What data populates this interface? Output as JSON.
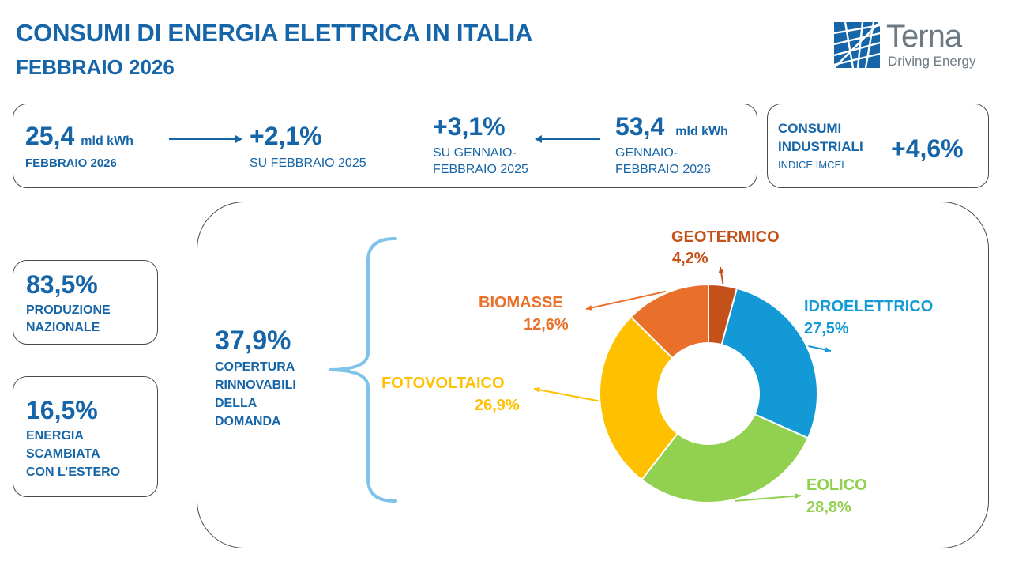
{
  "header": {
    "title": "CONSUMI DI ENERGIA ELETTRICA IN ITALIA",
    "subtitle": "FEBBRAIO 2026"
  },
  "logo": {
    "name": "Terna",
    "tagline": "Driving Energy"
  },
  "kpis": {
    "monthly_value": "25,4",
    "monthly_unit": "mld kWh",
    "monthly_caption": "FEBBRAIO 2026",
    "monthly_change": "+2,1%",
    "monthly_change_caption": "SU FEBBRAIO 2025",
    "ytd_change": "+3,1%",
    "ytd_change_caption_1": "SU GENNAIO-",
    "ytd_change_caption_2": "FEBBRAIO 2025",
    "ytd_value": "53,4",
    "ytd_unit": "mld kWh",
    "ytd_caption_1": "GENNAIO-",
    "ytd_caption_2": "FEBBRAIO 2026"
  },
  "industrial": {
    "label_1": "CONSUMI",
    "label_2": "INDUSTRIALI",
    "sub": "INDICE IMCEI",
    "value": "+4,6%"
  },
  "production": {
    "value": "83,5%",
    "caption_1": "PRODUZIONE",
    "caption_2": "NAZIONALE"
  },
  "exchange": {
    "value": "16,5%",
    "caption_1": "ENERGIA",
    "caption_2": "SCAMBIATA",
    "caption_3": "CON L’ESTERO"
  },
  "coverage": {
    "value": "37,9%",
    "caption_1": "COPERTURA",
    "caption_2": "RINNOVABILI",
    "caption_3": "DELLA",
    "caption_4": "DOMANDA"
  },
  "chart_data": {
    "type": "pie",
    "donut": true,
    "categories": [
      "GEOTERMICO",
      "IDROELETTRICO",
      "EOLICO",
      "FOTOVOLTAICO",
      "BIOMASSE"
    ],
    "values": [
      4.2,
      27.5,
      28.8,
      26.9,
      12.6
    ],
    "value_labels": [
      "4,2%",
      "27,5%",
      "28,8%",
      "26,9%",
      "12,6%"
    ],
    "colors": [
      "#c4511a",
      "#139ad6",
      "#92d050",
      "#ffc000",
      "#e8702a"
    ]
  }
}
